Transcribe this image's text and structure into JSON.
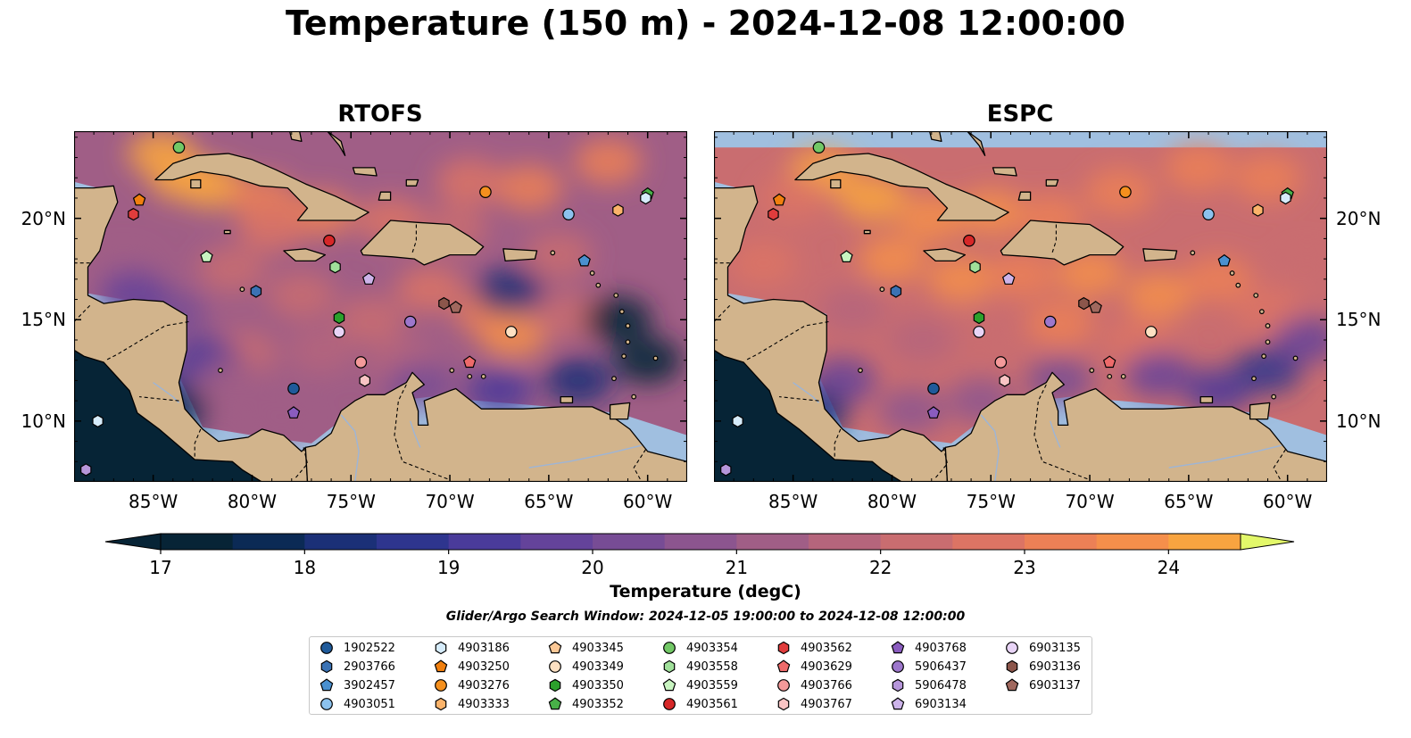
{
  "title": "Temperature (150 m) - 2024-12-08 12:00:00",
  "panels": [
    {
      "title": "RTOFS",
      "x_ticks": [
        "85°W",
        "80°W",
        "75°W",
        "70°W",
        "65°W",
        "60°W"
      ],
      "y_ticks": [
        "20°N",
        "15°N",
        "10°N"
      ],
      "y_tick_side": "left"
    },
    {
      "title": "ESPC",
      "x_ticks": [
        "85°W",
        "80°W",
        "75°W",
        "70°W",
        "65°W",
        "60°W"
      ],
      "y_ticks": [
        "20°N",
        "15°N",
        "10°N"
      ],
      "y_tick_side": "right"
    }
  ],
  "map_extent": {
    "lon": [
      -89,
      -58
    ],
    "lat": [
      7,
      24.3
    ]
  },
  "colorbar": {
    "label": "Temperature (degC)",
    "ticks": [
      "17",
      "18",
      "19",
      "20",
      "21",
      "22",
      "23",
      "24"
    ],
    "range": [
      17,
      24.5
    ],
    "step": 0.5,
    "extend": "both",
    "colors": [
      "#072436",
      "#0b2a55",
      "#1b3077",
      "#2e358e",
      "#4a3b9a",
      "#64439a",
      "#774c95",
      "#8c558f",
      "#a05e86",
      "#b5657c",
      "#c96d70",
      "#dc7464",
      "#ec8056",
      "#f58f4b",
      "#f8a440",
      "#f8bb3d",
      "#f1d953",
      "#e3f86a"
    ],
    "under_color": "#072436",
    "over_color": "#e3f86a"
  },
  "colors": {
    "ocean": "#a0bfe0",
    "land": "#d2b48c",
    "river": "#9db5d7",
    "deep": "#062436"
  },
  "search_window": "Glider/Argo Search Window: 2024-12-05 19:00:00 to 2024-12-08 12:00:00",
  "legend": [
    {
      "id": "1902522",
      "marker": "circle",
      "color": "#1f5a9a"
    },
    {
      "id": "2903766",
      "marker": "hexagon",
      "color": "#3a72b4"
    },
    {
      "id": "3902457",
      "marker": "pentagon",
      "color": "#4a90cf"
    },
    {
      "id": "4903051",
      "marker": "circle",
      "color": "#8cc2ee"
    },
    {
      "id": "4903186",
      "marker": "hexagon",
      "color": "#d6ecfb"
    },
    {
      "id": "4903250",
      "marker": "pentagon",
      "color": "#f07f0e"
    },
    {
      "id": "4903276",
      "marker": "circle",
      "color": "#f5901e"
    },
    {
      "id": "4903333",
      "marker": "hexagon",
      "color": "#fbb36a"
    },
    {
      "id": "4903345",
      "marker": "pentagon",
      "color": "#fcc896"
    },
    {
      "id": "4903349",
      "marker": "circle",
      "color": "#fde0c2"
    },
    {
      "id": "4903350",
      "marker": "hexagon",
      "color": "#2ca02c"
    },
    {
      "id": "4903352",
      "marker": "pentagon",
      "color": "#48b048"
    },
    {
      "id": "4903354",
      "marker": "circle",
      "color": "#72c866"
    },
    {
      "id": "4903558",
      "marker": "hexagon",
      "color": "#a0e09a"
    },
    {
      "id": "4903559",
      "marker": "pentagon",
      "color": "#c8f4c0"
    },
    {
      "id": "4903561",
      "marker": "circle",
      "color": "#d62728"
    },
    {
      "id": "4903562",
      "marker": "hexagon",
      "color": "#e03c3c"
    },
    {
      "id": "4903629",
      "marker": "pentagon",
      "color": "#ee6a6a"
    },
    {
      "id": "4903766",
      "marker": "circle",
      "color": "#f49a9a"
    },
    {
      "id": "4903767",
      "marker": "hexagon",
      "color": "#f9c4c4"
    },
    {
      "id": "4903768",
      "marker": "pentagon",
      "color": "#8a5cbf"
    },
    {
      "id": "5906437",
      "marker": "circle",
      "color": "#9d77cc"
    },
    {
      "id": "5906478",
      "marker": "hexagon",
      "color": "#b696da"
    },
    {
      "id": "6903134",
      "marker": "pentagon",
      "color": "#cdb4ea"
    },
    {
      "id": "6903135",
      "marker": "circle",
      "color": "#e8d4f6"
    },
    {
      "id": "6903136",
      "marker": "hexagon",
      "color": "#8c564b"
    },
    {
      "id": "6903137",
      "marker": "pentagon",
      "color": "#a0685e"
    }
  ],
  "stations": [
    {
      "id": "4903354",
      "lon": -83.7,
      "lat": 23.5
    },
    {
      "id": "4903250",
      "lon": -85.7,
      "lat": 20.9
    },
    {
      "id": "4903562",
      "lon": -86.0,
      "lat": 20.2
    },
    {
      "id": "4903276",
      "lon": -68.2,
      "lat": 21.3
    },
    {
      "id": "4903352",
      "lon": -60.0,
      "lat": 21.2
    },
    {
      "id": "4903186",
      "lon": -60.1,
      "lat": 21.0
    },
    {
      "id": "4903051",
      "lon": -64.0,
      "lat": 20.2
    },
    {
      "id": "4903333",
      "lon": -61.5,
      "lat": 20.4
    },
    {
      "id": "4903561",
      "lon": -76.1,
      "lat": 18.9
    },
    {
      "id": "3902457",
      "lon": -63.2,
      "lat": 17.9
    },
    {
      "id": "4903559",
      "lon": -82.3,
      "lat": 18.1
    },
    {
      "id": "4903558",
      "lon": -75.8,
      "lat": 17.6
    },
    {
      "id": "6903134",
      "lon": -74.1,
      "lat": 17.0
    },
    {
      "id": "2903766",
      "lon": -79.8,
      "lat": 16.4
    },
    {
      "id": "6903136",
      "lon": -70.3,
      "lat": 15.8
    },
    {
      "id": "6903137",
      "lon": -69.7,
      "lat": 15.6
    },
    {
      "id": "4903350",
      "lon": -75.6,
      "lat": 15.1
    },
    {
      "id": "5906437",
      "lon": -72.0,
      "lat": 14.9
    },
    {
      "id": "6903135",
      "lon": -75.6,
      "lat": 14.4
    },
    {
      "id": "4903349",
      "lon": -66.9,
      "lat": 14.4
    },
    {
      "id": "4903766",
      "lon": -74.5,
      "lat": 12.9
    },
    {
      "id": "4903629",
      "lon": -69.0,
      "lat": 12.9
    },
    {
      "id": "4903767",
      "lon": -74.3,
      "lat": 12.0
    },
    {
      "id": "1902522",
      "lon": -77.9,
      "lat": 11.6
    },
    {
      "id": "4903768",
      "lon": -77.9,
      "lat": 10.4
    },
    {
      "id": "4903186b",
      "legend_ref": "4903186",
      "lon": -87.8,
      "lat": 10.0
    },
    {
      "id": "5906478",
      "lon": -88.4,
      "lat": 7.6
    }
  ],
  "warm_pools": {
    "rtofs": [
      {
        "lon": -83.5,
        "lat": 22.0,
        "t": 24.3
      },
      {
        "lon": -82.0,
        "lat": 21.6,
        "t": 24.2
      },
      {
        "lon": -84.6,
        "lat": 23.2,
        "t": 24.0
      },
      {
        "lon": -79.5,
        "lat": 21.0,
        "t": 23.3
      },
      {
        "lon": -76.5,
        "lat": 20.2,
        "t": 23.0
      },
      {
        "lon": -73.0,
        "lat": 19.9,
        "t": 22.6
      },
      {
        "lon": -69.8,
        "lat": 19.5,
        "t": 22.3
      },
      {
        "lon": -66.0,
        "lat": 21.5,
        "t": 23.0
      },
      {
        "lon": -62.0,
        "lat": 22.8,
        "t": 23.4
      },
      {
        "lon": -64.5,
        "lat": 18.2,
        "t": 22.2
      },
      {
        "lon": -79.0,
        "lat": 19.5,
        "t": 22.9
      },
      {
        "lon": -81.0,
        "lat": 17.5,
        "t": 22.3
      },
      {
        "lon": -77.5,
        "lat": 16.2,
        "t": 22.4
      },
      {
        "lon": -74.0,
        "lat": 15.0,
        "t": 22.3
      },
      {
        "lon": -71.0,
        "lat": 16.5,
        "t": 22.5
      },
      {
        "lon": -68.0,
        "lat": 15.3,
        "t": 23.0
      },
      {
        "lon": -66.8,
        "lat": 14.2,
        "t": 23.6
      },
      {
        "lon": -64.0,
        "lat": 15.2,
        "t": 22.4
      },
      {
        "lon": -76.5,
        "lat": 13.5,
        "t": 21.9
      },
      {
        "lon": -72.5,
        "lat": 13.0,
        "t": 21.8
      },
      {
        "lon": -80.5,
        "lat": 13.3,
        "t": 22.0
      },
      {
        "lon": -86.5,
        "lat": 17.3,
        "t": 21.2
      },
      {
        "lon": -82.3,
        "lat": 13.0,
        "t": 19.0
      },
      {
        "lon": -85.0,
        "lat": 11.4,
        "t": 18.7
      },
      {
        "lon": -83.9,
        "lat": 10.6,
        "t": 17.8
      },
      {
        "lon": -81.0,
        "lat": 12.0,
        "t": 21.3
      },
      {
        "lon": -78.5,
        "lat": 10.2,
        "t": 21.0
      },
      {
        "lon": -84.0,
        "lat": 15.3,
        "t": 20.3
      },
      {
        "lon": -86.0,
        "lat": 16.3,
        "t": 19.5
      },
      {
        "lon": -67.0,
        "lat": 16.4,
        "t": 18.2
      },
      {
        "lon": -61.5,
        "lat": 15.0,
        "t": 17.3
      },
      {
        "lon": -60.0,
        "lat": 13.0,
        "t": 17.0
      },
      {
        "lon": -63.5,
        "lat": 12.0,
        "t": 18.0
      },
      {
        "lon": -67.5,
        "lat": 11.5,
        "t": 19.0
      },
      {
        "lon": -71.5,
        "lat": 11.8,
        "t": 20.0
      },
      {
        "lon": -69.0,
        "lat": 21.8,
        "t": 22.5
      }
    ],
    "espc": [
      {
        "lon": -83.5,
        "lat": 22.3,
        "t": 24.2
      },
      {
        "lon": -81.0,
        "lat": 21.0,
        "t": 24.0
      },
      {
        "lon": -78.0,
        "lat": 20.0,
        "t": 23.7
      },
      {
        "lon": -75.0,
        "lat": 20.3,
        "t": 23.5
      },
      {
        "lon": -72.0,
        "lat": 20.0,
        "t": 23.3
      },
      {
        "lon": -68.5,
        "lat": 21.3,
        "t": 23.4
      },
      {
        "lon": -64.5,
        "lat": 22.5,
        "t": 23.2
      },
      {
        "lon": -61.0,
        "lat": 22.0,
        "t": 23.0
      },
      {
        "lon": -80.0,
        "lat": 18.0,
        "t": 23.6
      },
      {
        "lon": -76.5,
        "lat": 17.0,
        "t": 23.5
      },
      {
        "lon": -73.5,
        "lat": 17.2,
        "t": 23.3
      },
      {
        "lon": -70.0,
        "lat": 17.3,
        "t": 23.5
      },
      {
        "lon": -66.5,
        "lat": 16.2,
        "t": 23.6
      },
      {
        "lon": -63.5,
        "lat": 17.0,
        "t": 23.2
      },
      {
        "lon": -61.0,
        "lat": 15.5,
        "t": 22.6
      },
      {
        "lon": -71.5,
        "lat": 14.8,
        "t": 23.0
      },
      {
        "lon": -67.5,
        "lat": 14.0,
        "t": 22.9
      },
      {
        "lon": -75.5,
        "lat": 14.5,
        "t": 22.4
      },
      {
        "lon": -78.5,
        "lat": 14.0,
        "t": 21.5
      },
      {
        "lon": -82.0,
        "lat": 15.5,
        "t": 21.9
      },
      {
        "lon": -86.5,
        "lat": 17.8,
        "t": 22.5
      },
      {
        "lon": -85.0,
        "lat": 21.0,
        "t": 22.8
      },
      {
        "lon": -82.5,
        "lat": 12.0,
        "t": 19.8
      },
      {
        "lon": -83.9,
        "lat": 10.4,
        "t": 18.0
      },
      {
        "lon": -79.0,
        "lat": 10.5,
        "t": 20.5
      },
      {
        "lon": -75.5,
        "lat": 11.0,
        "t": 20.8
      },
      {
        "lon": -71.5,
        "lat": 12.0,
        "t": 20.3
      },
      {
        "lon": -66.5,
        "lat": 12.3,
        "t": 19.8
      },
      {
        "lon": -63.5,
        "lat": 11.5,
        "t": 19.0
      },
      {
        "lon": -61.0,
        "lat": 12.5,
        "t": 18.9
      },
      {
        "lon": -59.0,
        "lat": 14.0,
        "t": 19.8
      },
      {
        "lon": -59.0,
        "lat": 17.5,
        "t": 22.2
      }
    ]
  }
}
